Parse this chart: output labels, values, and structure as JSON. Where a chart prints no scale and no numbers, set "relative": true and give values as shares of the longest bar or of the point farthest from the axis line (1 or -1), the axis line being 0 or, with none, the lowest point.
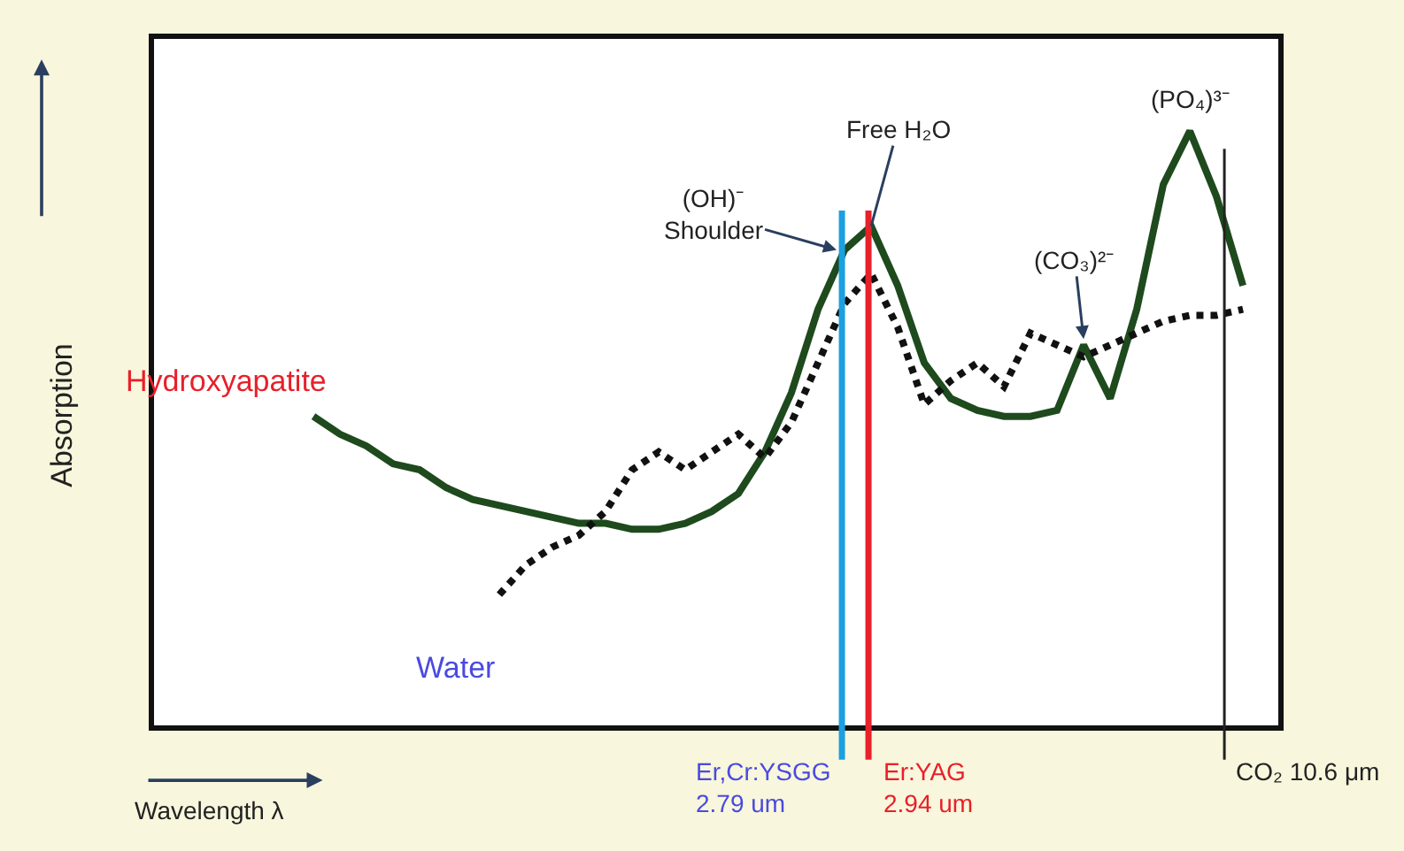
{
  "chart_data": {
    "type": "line",
    "relative": true,
    "xlabel": "Wavelength λ",
    "ylabel": "Absorption",
    "legend": false,
    "categories": [
      null,
      null,
      null,
      null,
      null,
      null,
      null,
      null,
      null,
      null,
      null,
      null,
      null,
      null,
      null,
      null,
      null,
      null,
      null,
      null,
      null,
      null,
      null,
      null,
      null,
      null,
      null,
      null,
      null,
      null,
      null,
      null,
      null,
      null,
      null,
      null,
      null,
      null,
      null,
      null,
      null,
      null,
      null
    ],
    "series": [
      {
        "name": "Hydroxyapatite",
        "color": "#1e4a1e",
        "line_style": "solid",
        "values": [
          null,
          null,
          null,
          null,
          null,
          null,
          0.52,
          0.49,
          0.47,
          0.44,
          0.43,
          0.4,
          0.38,
          0.37,
          0.36,
          0.35,
          0.34,
          0.34,
          0.33,
          0.33,
          0.34,
          0.36,
          0.39,
          0.46,
          0.56,
          0.7,
          0.8,
          0.84,
          0.74,
          0.61,
          0.55,
          0.53,
          0.52,
          0.52,
          0.53,
          0.64,
          0.55,
          0.7,
          0.91,
          1.0,
          0.89,
          0.74,
          null
        ]
      },
      {
        "name": "Water",
        "color": "#111111",
        "line_style": "dotted",
        "values": [
          null,
          null,
          null,
          null,
          null,
          null,
          null,
          null,
          null,
          null,
          null,
          null,
          null,
          0.22,
          0.27,
          0.3,
          0.32,
          0.36,
          0.43,
          0.46,
          0.43,
          0.46,
          0.49,
          0.45,
          0.51,
          0.61,
          0.71,
          0.76,
          0.67,
          0.54,
          0.58,
          0.61,
          0.57,
          0.66,
          0.64,
          0.62,
          0.64,
          0.66,
          0.68,
          0.69,
          0.69,
          0.7,
          null
        ]
      }
    ],
    "annotations": [
      "(OH)⁻\nShoulder",
      "Free H₂O",
      "(CO₃)²⁻",
      "(PO₄)³⁻",
      "Er,Cr:YSGG\n2.79 um",
      "Er:YAG\n2.94 um",
      "CO₂ 10.6 μm"
    ]
  }
}
